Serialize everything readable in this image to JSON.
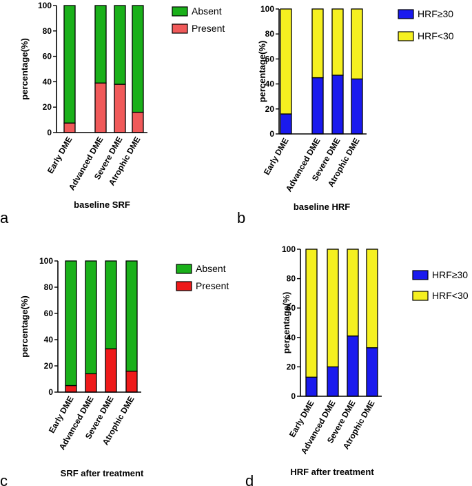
{
  "chart_data": [
    {
      "type": "bar",
      "stacked": true,
      "panel_label": "a",
      "title": "baseline SRF",
      "xlabel": "baseline SRF",
      "ylabel": "percentage(%)",
      "ylim": [
        0,
        100
      ],
      "yticks": [
        0,
        20,
        40,
        60,
        80,
        100
      ],
      "categories": [
        "Early DME",
        "Advanced DME",
        "Severe DME",
        "Atrophic DME"
      ],
      "series": [
        {
          "name": "Present",
          "color": "#f05a5a",
          "values": [
            7.5,
            39,
            38,
            16
          ]
        },
        {
          "name": "Absent",
          "color": "#1ab01a",
          "values": [
            92.5,
            61,
            62,
            84
          ]
        }
      ],
      "legend": [
        "Absent",
        "Present"
      ],
      "legend_position": "right"
    },
    {
      "type": "bar",
      "stacked": true,
      "panel_label": "b",
      "title": "baseline HRF",
      "xlabel": "baseline HRF",
      "ylabel": "percentage(%)",
      "ylim": [
        0,
        100
      ],
      "yticks": [
        0,
        20,
        40,
        60,
        80,
        100
      ],
      "categories": [
        "Early DME",
        "Advanced DME",
        "Severe DME",
        "Atrophic DME"
      ],
      "series": [
        {
          "name": "HRF≥30",
          "color": "#1a1aee",
          "values": [
            16,
            45,
            47,
            44
          ]
        },
        {
          "name": "HRF<30",
          "color": "#f5f020",
          "values": [
            84,
            55,
            53,
            56
          ]
        }
      ],
      "legend": [
        "HRF≥30",
        "HRF<30"
      ],
      "legend_position": "right"
    },
    {
      "type": "bar",
      "stacked": true,
      "panel_label": "c",
      "title": "SRF after treatment",
      "xlabel": "SRF after treatment",
      "ylabel": "percentage(%)",
      "ylim": [
        0,
        100
      ],
      "yticks": [
        0,
        20,
        40,
        60,
        80,
        100
      ],
      "categories": [
        "Early DME",
        "Advanced DME",
        "Severe DME",
        "Atrophic DME"
      ],
      "series": [
        {
          "name": "Present",
          "color": "#ee1a1a",
          "values": [
            5,
            14,
            33,
            16
          ]
        },
        {
          "name": "Absent",
          "color": "#1ab01a",
          "values": [
            95,
            86,
            67,
            84
          ]
        }
      ],
      "legend": [
        "Absent",
        "Present"
      ],
      "legend_position": "right"
    },
    {
      "type": "bar",
      "stacked": true,
      "panel_label": "d",
      "title": "HRF after treatment",
      "xlabel": "HRF after treatment",
      "ylabel": "percentage(%)",
      "ylim": [
        0,
        100
      ],
      "yticks": [
        0,
        20,
        40,
        60,
        80,
        100
      ],
      "categories": [
        "Early DME",
        "Advanced DME",
        "Severe DME",
        "Atrophic DME"
      ],
      "series": [
        {
          "name": "HRF≥30",
          "color": "#1a1aee",
          "values": [
            13,
            20,
            41,
            33
          ]
        },
        {
          "name": "HRF<30",
          "color": "#f5f020",
          "values": [
            87,
            80,
            59,
            67
          ]
        }
      ],
      "legend": [
        "HRF≥30",
        "HRF<30"
      ],
      "legend_position": "right"
    }
  ]
}
